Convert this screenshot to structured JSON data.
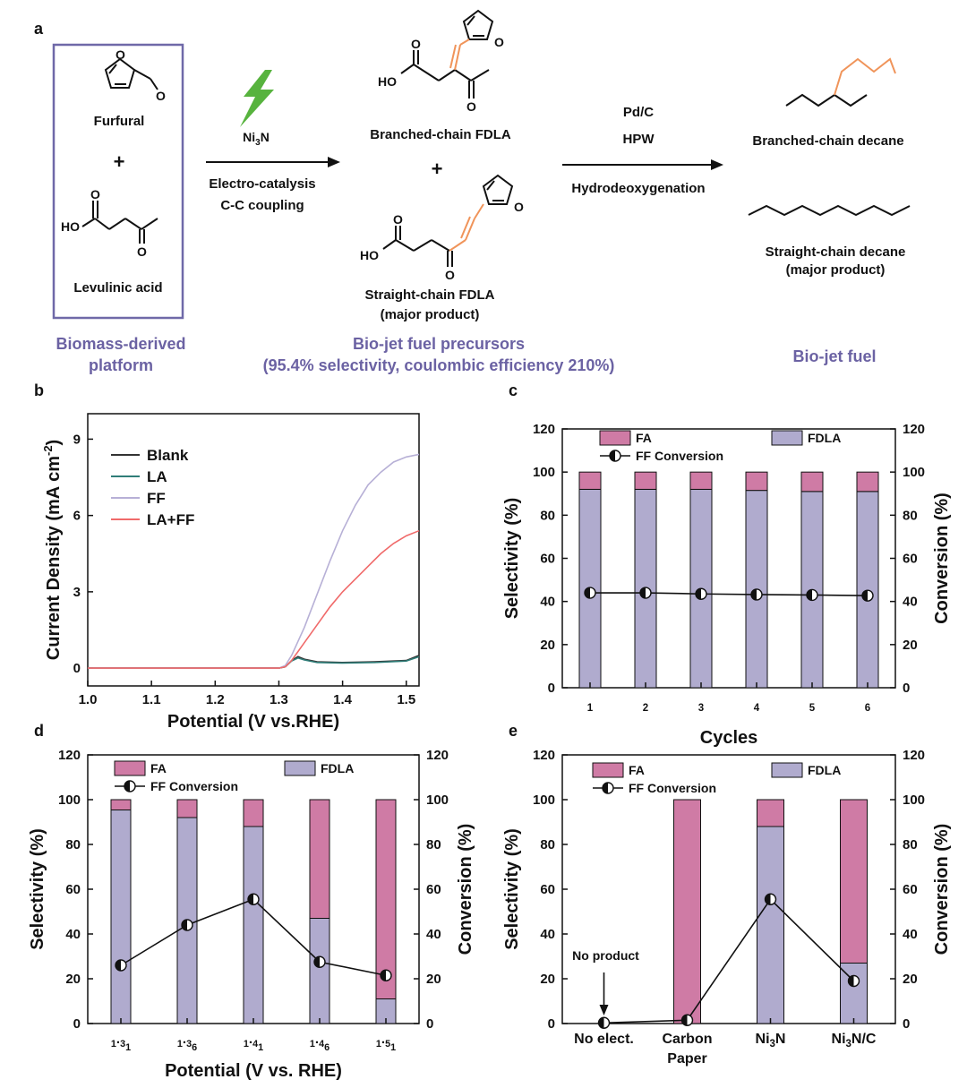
{
  "colors": {
    "fdla": "#b0abce",
    "fa": "#cf7ba5",
    "box": "#6f69a8",
    "highlight": "#f0945a",
    "bolt": "#57b33e",
    "blank": "#333333",
    "la": "#2f7d78",
    "ff": "#b7b0d6",
    "laff": "#f06a6a"
  },
  "scheme": {
    "panel": "a",
    "furfural": "Furfural",
    "plus": "+",
    "levulinic": "Levulinic acid",
    "catalyst": "Ni3N",
    "step1_line1": "Electro-catalysis",
    "step1_line2": "C-C coupling",
    "branched_fdla": "Branched-chain FDLA",
    "straight_fdla": "Straight-chain FDLA",
    "major_product": "(major product)",
    "pdc": "Pd/C",
    "hpw": "HPW",
    "hdo": "Hydrodeoxygenation",
    "branched_decane": "Branched-chain decane",
    "straight_decane": "Straight-chain decane",
    "major_product2": "(major product)",
    "biomass_line1": "Biomass-derived",
    "biomass_line2": "platform",
    "precursors_line1": "Bio-jet fuel precursors",
    "precursors_line2": "(95.4% selectivity, coulombic efficiency 210%)",
    "jetfuel": "Bio-jet fuel",
    "ho": "HO",
    "o": "O"
  },
  "chart_data": [
    {
      "panel": "b",
      "type": "line",
      "xlabel": "Potential (V vs.RHE)",
      "ylabel": "Current Density (mA cm-2)",
      "xlim": [
        1.0,
        1.52
      ],
      "ylim": [
        -0.7,
        10.0
      ],
      "xticks": [
        "1.0",
        "1.1",
        "1.2",
        "1.3",
        "1.4",
        "1.5"
      ],
      "yticks": [
        "0",
        "3",
        "6",
        "9"
      ],
      "series": [
        {
          "name": "Blank",
          "x": [
            1.0,
            1.3,
            1.31,
            1.32,
            1.33,
            1.34,
            1.36,
            1.4,
            1.45,
            1.5,
            1.52
          ],
          "values": [
            0,
            0,
            0.05,
            0.3,
            0.45,
            0.35,
            0.25,
            0.22,
            0.25,
            0.3,
            0.5
          ]
        },
        {
          "name": "LA",
          "x": [
            1.0,
            1.3,
            1.31,
            1.32,
            1.33,
            1.34,
            1.36,
            1.4,
            1.45,
            1.5,
            1.52
          ],
          "values": [
            0,
            0,
            0.05,
            0.28,
            0.4,
            0.32,
            0.22,
            0.2,
            0.22,
            0.28,
            0.45
          ]
        },
        {
          "name": "FF",
          "x": [
            1.0,
            1.3,
            1.31,
            1.32,
            1.34,
            1.36,
            1.38,
            1.4,
            1.42,
            1.44,
            1.46,
            1.48,
            1.5,
            1.52
          ],
          "values": [
            0,
            0,
            0.1,
            0.5,
            1.6,
            2.9,
            4.2,
            5.4,
            6.4,
            7.2,
            7.7,
            8.1,
            8.3,
            8.4
          ]
        },
        {
          "name": "LA+FF",
          "x": [
            1.0,
            1.3,
            1.31,
            1.32,
            1.34,
            1.36,
            1.38,
            1.4,
            1.42,
            1.44,
            1.46,
            1.48,
            1.5,
            1.52
          ],
          "values": [
            0,
            0,
            0.05,
            0.3,
            1.0,
            1.7,
            2.4,
            3.0,
            3.5,
            4.0,
            4.5,
            4.9,
            5.2,
            5.4
          ]
        }
      ]
    },
    {
      "panel": "c",
      "type": "bar",
      "xlabel": "Cycles",
      "ylabel": "Selectivity (%)",
      "y2label": "Conversion (%)",
      "ylim": [
        0,
        120
      ],
      "yticks": [
        "0",
        "20",
        "40",
        "60",
        "80",
        "100",
        "120"
      ],
      "categories": [
        "1",
        "2",
        "3",
        "4",
        "5",
        "6"
      ],
      "series": [
        {
          "name": "FDLA",
          "values": [
            92,
            92,
            92,
            91.5,
            91,
            91
          ]
        },
        {
          "name": "FA",
          "values": [
            8,
            8,
            8,
            8.5,
            9,
            9
          ]
        },
        {
          "name": "FF Conversion",
          "values": [
            44,
            44,
            43.5,
            43.2,
            43,
            42.7
          ]
        }
      ]
    },
    {
      "panel": "d",
      "type": "bar",
      "xlabel": "Potential (V vs. RHE)",
      "ylabel": "Selectivity (%)",
      "y2label": "Conversion (%)",
      "ylim": [
        0,
        120
      ],
      "yticks": [
        "0",
        "20",
        "40",
        "60",
        "80",
        "100",
        "120"
      ],
      "categories": [
        "1.31",
        "1.36",
        "1.41",
        "1.46",
        "1.51"
      ],
      "series": [
        {
          "name": "FDLA",
          "values": [
            95.4,
            92,
            88,
            47,
            11
          ]
        },
        {
          "name": "FA",
          "values": [
            4.6,
            8,
            12,
            53,
            89
          ]
        },
        {
          "name": "FF Conversion",
          "values": [
            26,
            44,
            55.5,
            27.5,
            21.5
          ]
        }
      ]
    },
    {
      "panel": "e",
      "type": "bar",
      "xlabel": "",
      "ylabel": "Selectivity (%)",
      "y2label": "Conversion  (%)",
      "ylim": [
        0,
        120
      ],
      "yticks": [
        "0",
        "20",
        "40",
        "60",
        "80",
        "100",
        "120"
      ],
      "categories": [
        "No elect.",
        "Carbon Paper",
        "Ni3N",
        "Ni3N/C"
      ],
      "annotation": "No product",
      "series": [
        {
          "name": "FDLA",
          "values": [
            0,
            0,
            88,
            27
          ]
        },
        {
          "name": "FA",
          "values": [
            0,
            100,
            12,
            73
          ]
        },
        {
          "name": "FF Conversion",
          "values": [
            0.3,
            1.5,
            55.5,
            19
          ]
        }
      ]
    }
  ]
}
